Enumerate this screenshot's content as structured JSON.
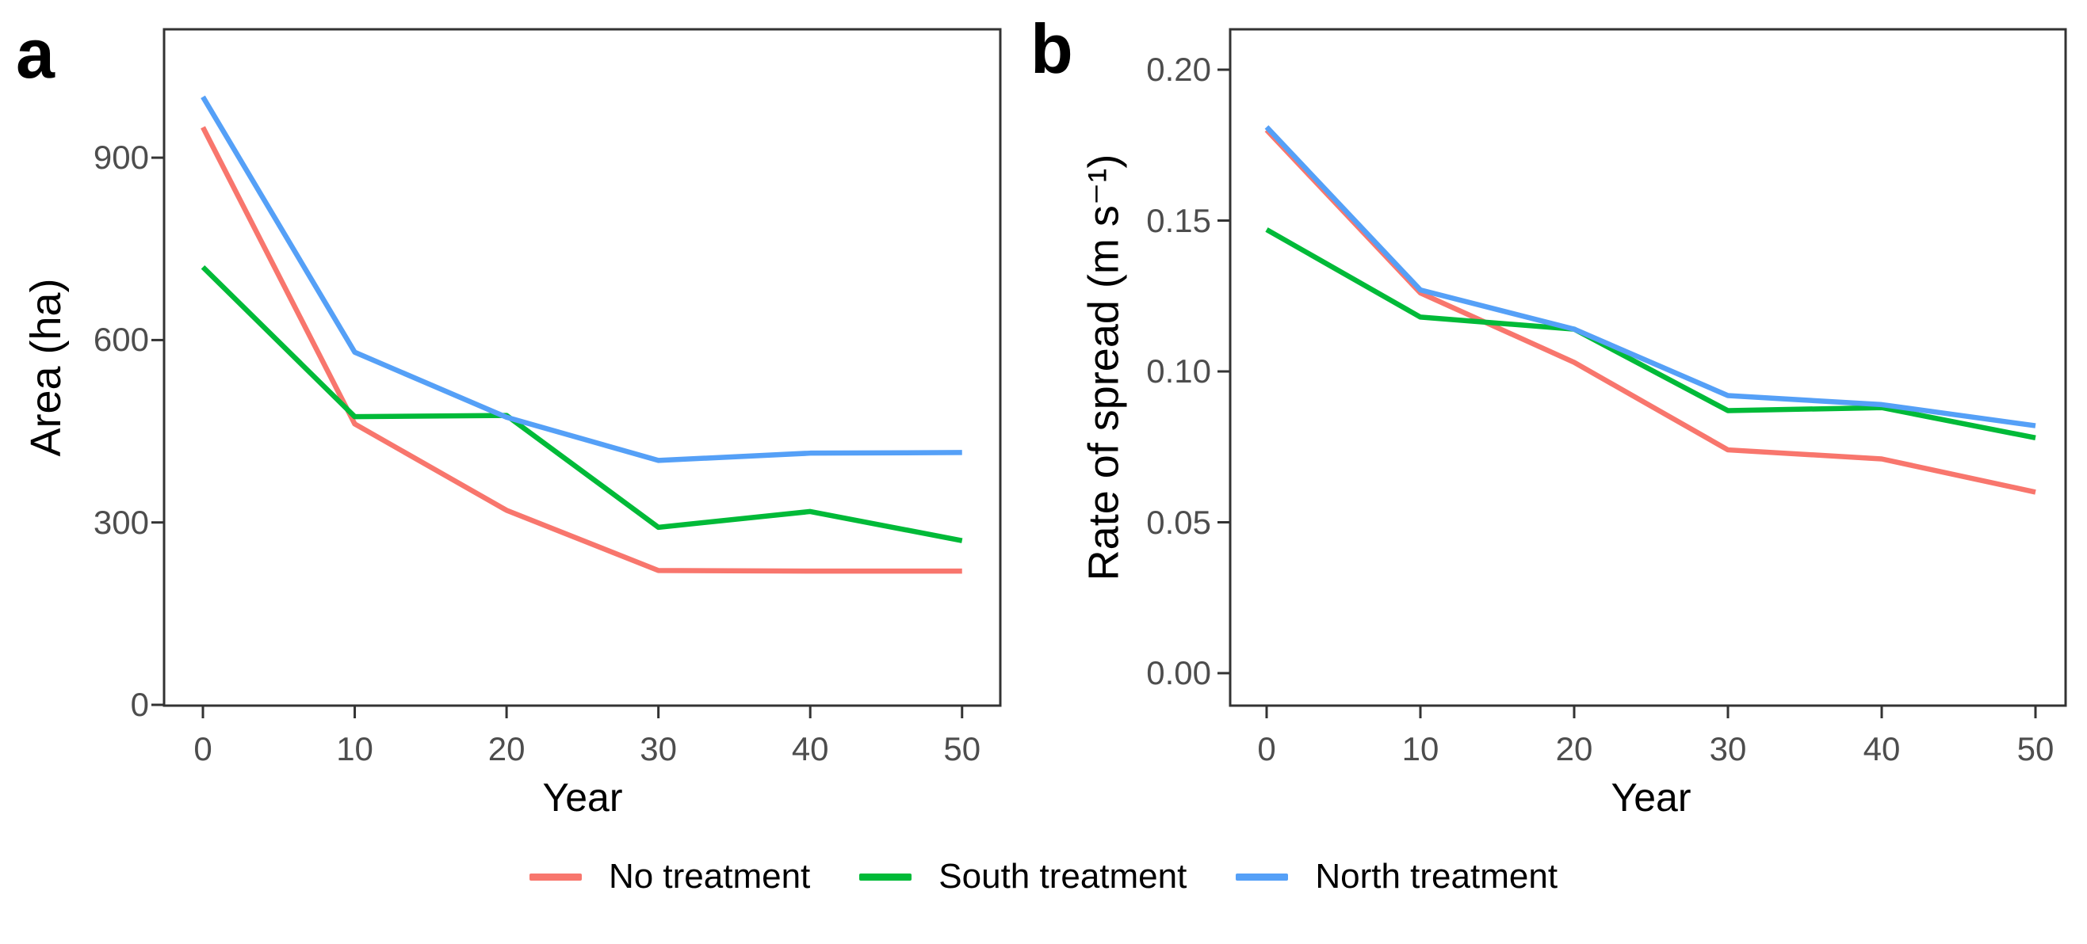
{
  "figure": {
    "background": "#ffffff",
    "border_color": "#333333",
    "tick_color": "#333333",
    "tick_label_color": "#4d4d4d"
  },
  "panels": [
    {
      "letter": "a"
    },
    {
      "letter": "b"
    }
  ],
  "legend": {
    "position": "bottom",
    "items": [
      {
        "label": "No treatment",
        "color": "#F8766D"
      },
      {
        "label": "South treatment",
        "color": "#00BA38"
      },
      {
        "label": "North treatment",
        "color": "#55A0F7"
      }
    ]
  },
  "chart_data": [
    {
      "type": "line",
      "title": "a",
      "xlabel": "Year",
      "ylabel": "Area (ha)",
      "x": [
        0,
        10,
        20,
        30,
        40,
        50
      ],
      "xlim": [
        -2.5,
        52.5
      ],
      "ylim": [
        0,
        1110
      ],
      "xticks": [
        0,
        10,
        20,
        30,
        40,
        50
      ],
      "xtick_labels": [
        "0",
        "10",
        "20",
        "30",
        "40",
        "50"
      ],
      "yticks": [
        0,
        300,
        600,
        900
      ],
      "ytick_labels": [
        "0",
        "300",
        "600",
        "900"
      ],
      "grid": false,
      "legend_position": "bottom",
      "series": [
        {
          "name": "No treatment",
          "color": "#F8766D",
          "values": [
            950,
            462,
            320,
            221,
            220,
            220
          ]
        },
        {
          "name": "South treatment",
          "color": "#00BA38",
          "values": [
            720,
            474,
            476,
            292,
            318,
            270
          ]
        },
        {
          "name": "North treatment",
          "color": "#55A0F7",
          "values": [
            1000,
            580,
            473,
            402,
            414,
            415
          ]
        }
      ]
    },
    {
      "type": "line",
      "title": "b",
      "xlabel": "Year",
      "ylabel": "Rate of spread (m s⁻¹)",
      "x": [
        0,
        10,
        20,
        30,
        40,
        50
      ],
      "xlim": [
        -2.5,
        52.5
      ],
      "ylim": [
        0,
        0.213
      ],
      "xticks": [
        0,
        10,
        20,
        30,
        40,
        50
      ],
      "xtick_labels": [
        "0",
        "10",
        "20",
        "30",
        "40",
        "50"
      ],
      "yticks": [
        0,
        0.05,
        0.1,
        0.15,
        0.2
      ],
      "ytick_labels": [
        "0.00",
        "0.05",
        "0.10",
        "0.15",
        "0.20"
      ],
      "grid": false,
      "legend_position": "bottom",
      "series": [
        {
          "name": "No treatment",
          "color": "#F8766D",
          "values": [
            0.18,
            0.126,
            0.103,
            0.074,
            0.071,
            0.06
          ]
        },
        {
          "name": "South treatment",
          "color": "#00BA38",
          "values": [
            0.147,
            0.118,
            0.114,
            0.087,
            0.088,
            0.078
          ]
        },
        {
          "name": "North treatment",
          "color": "#55A0F7",
          "values": [
            0.181,
            0.127,
            0.114,
            0.092,
            0.089,
            0.082
          ]
        }
      ]
    }
  ]
}
